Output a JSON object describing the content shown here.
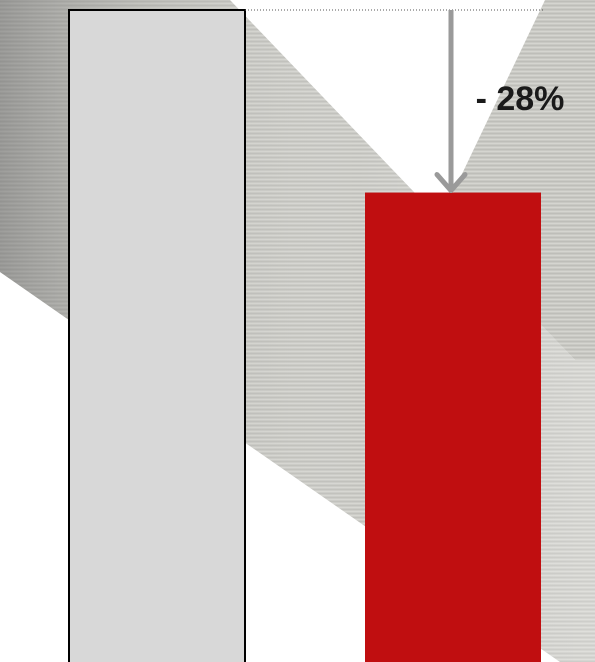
{
  "chart_data": {
    "type": "bar",
    "categories": [
      "",
      ""
    ],
    "values": [
      100,
      72
    ],
    "ylim": [
      0,
      100
    ],
    "grid": false,
    "legend": "none",
    "annotation": "- 28%",
    "colors": {
      "bars": [
        "#d8d8d8",
        "#c00e10"
      ],
      "bar_outline": [
        "#000000",
        "none"
      ],
      "arrow": "#9a9a9a",
      "reference_line": "#555555",
      "background_metal": "#c7c7c2",
      "background_white": "#ffffff"
    }
  }
}
